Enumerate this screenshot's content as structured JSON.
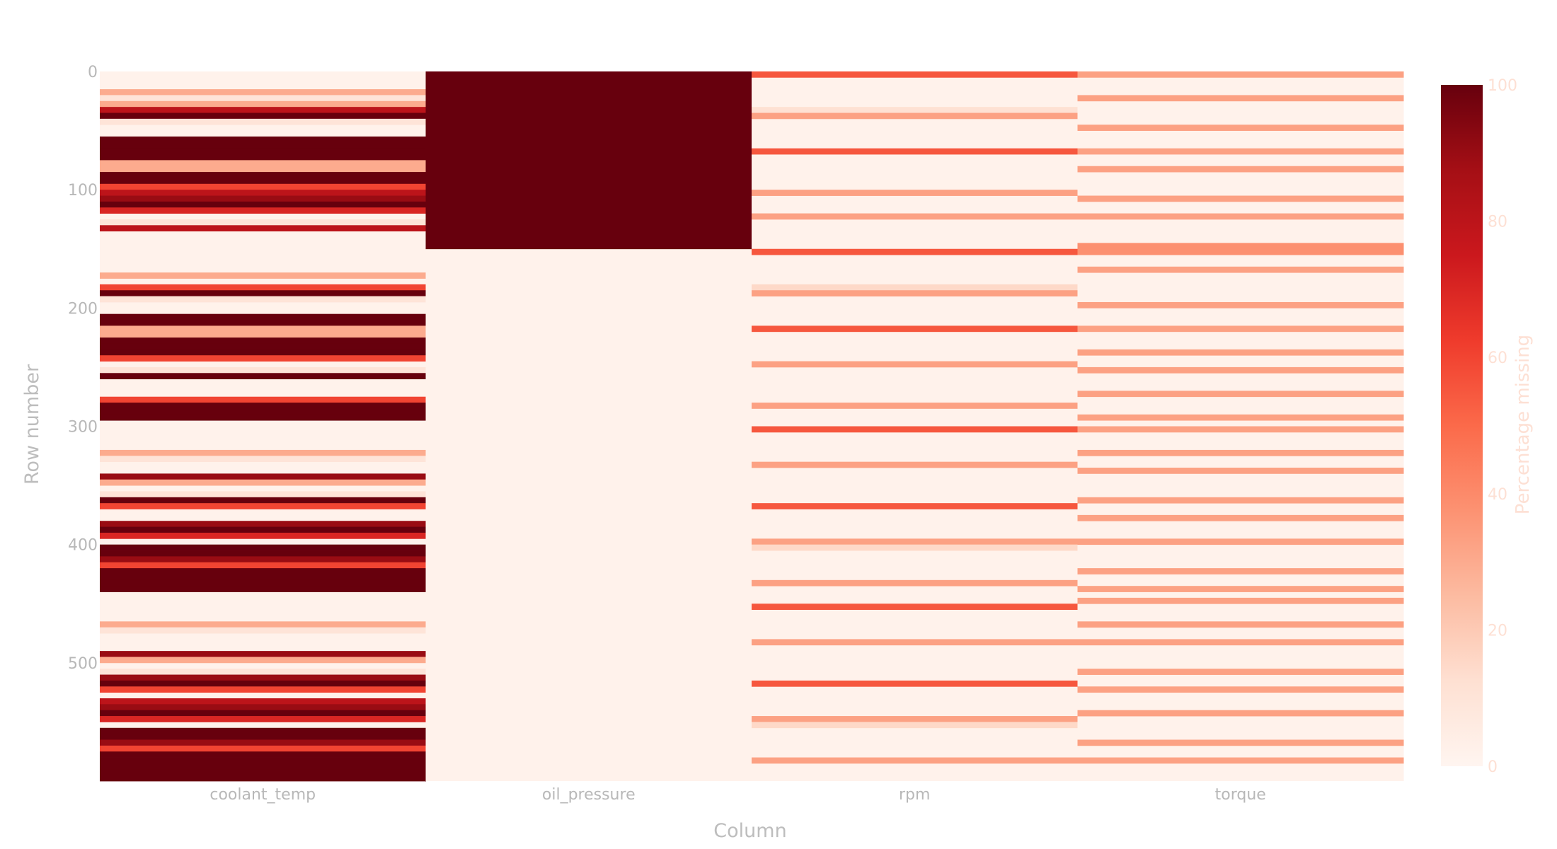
{
  "chart_data": {
    "type": "heatmap",
    "colorscale_name": "Reds",
    "colorscale": [
      "#fff5f0",
      "#fee0d2",
      "#fcbba1",
      "#fc9272",
      "#fb6a4a",
      "#ef3b2c",
      "#cb181d",
      "#a50f15",
      "#67000d"
    ],
    "columns": [
      "coolant_temp",
      "oil_pressure",
      "rpm",
      "torque"
    ],
    "xlabel": "Column",
    "ylabel": "Row number",
    "colorbar_title": "Percentage missing",
    "colorbar_range": [
      0,
      100
    ],
    "colorbar_ticks": [
      "0",
      "20",
      "40",
      "60",
      "80",
      "100"
    ],
    "y_ticks": [
      "0",
      "100",
      "200",
      "300",
      "400",
      "500"
    ],
    "row_count": 600,
    "row_bin": 5,
    "background_value": 2,
    "segments": {
      "coolant_temp": [
        [
          15,
          20,
          30
        ],
        [
          20,
          25,
          10
        ],
        [
          25,
          30,
          30
        ],
        [
          30,
          35,
          80
        ],
        [
          35,
          40,
          100
        ],
        [
          40,
          45,
          10
        ],
        [
          55,
          65,
          100
        ],
        [
          65,
          75,
          100
        ],
        [
          75,
          85,
          30
        ],
        [
          85,
          95,
          100
        ],
        [
          95,
          100,
          60
        ],
        [
          100,
          105,
          80
        ],
        [
          105,
          110,
          90
        ],
        [
          110,
          115,
          100
        ],
        [
          115,
          120,
          70
        ],
        [
          125,
          130,
          10
        ],
        [
          130,
          135,
          80
        ],
        [
          170,
          175,
          30
        ],
        [
          180,
          185,
          60
        ],
        [
          185,
          190,
          100
        ],
        [
          190,
          195,
          10
        ],
        [
          205,
          215,
          100
        ],
        [
          215,
          220,
          30
        ],
        [
          220,
          225,
          30
        ],
        [
          225,
          230,
          100
        ],
        [
          230,
          235,
          100
        ],
        [
          235,
          240,
          100
        ],
        [
          240,
          245,
          60
        ],
        [
          250,
          255,
          10
        ],
        [
          255,
          260,
          100
        ],
        [
          275,
          280,
          60
        ],
        [
          280,
          290,
          100
        ],
        [
          290,
          295,
          100
        ],
        [
          320,
          325,
          30
        ],
        [
          325,
          330,
          10
        ],
        [
          340,
          345,
          90
        ],
        [
          345,
          350,
          30
        ],
        [
          355,
          360,
          10
        ],
        [
          360,
          365,
          100
        ],
        [
          365,
          370,
          60
        ],
        [
          380,
          385,
          90
        ],
        [
          385,
          390,
          100
        ],
        [
          390,
          395,
          70
        ],
        [
          400,
          405,
          100
        ],
        [
          405,
          410,
          100
        ],
        [
          410,
          415,
          90
        ],
        [
          415,
          420,
          60
        ],
        [
          420,
          430,
          100
        ],
        [
          430,
          435,
          100
        ],
        [
          435,
          440,
          100
        ],
        [
          465,
          470,
          30
        ],
        [
          470,
          475,
          10
        ],
        [
          490,
          495,
          90
        ],
        [
          495,
          500,
          30
        ],
        [
          505,
          510,
          10
        ],
        [
          510,
          515,
          90
        ],
        [
          515,
          520,
          100
        ],
        [
          520,
          525,
          60
        ],
        [
          530,
          535,
          80
        ],
        [
          535,
          540,
          90
        ],
        [
          540,
          545,
          100
        ],
        [
          545,
          550,
          70
        ],
        [
          555,
          560,
          100
        ],
        [
          560,
          565,
          100
        ],
        [
          565,
          570,
          90
        ],
        [
          570,
          575,
          60
        ],
        [
          575,
          580,
          100
        ],
        [
          580,
          585,
          100
        ],
        [
          585,
          590,
          100
        ],
        [
          590,
          595,
          100
        ],
        [
          595,
          600,
          100
        ]
      ],
      "oil_pressure": [
        [
          0,
          150,
          100
        ]
      ],
      "rpm": [
        [
          0,
          5,
          55
        ],
        [
          30,
          35,
          12
        ],
        [
          35,
          40,
          33
        ],
        [
          65,
          70,
          55
        ],
        [
          100,
          105,
          33
        ],
        [
          120,
          125,
          33
        ],
        [
          150,
          155,
          55
        ],
        [
          180,
          185,
          15
        ],
        [
          185,
          190,
          33
        ],
        [
          215,
          220,
          55
        ],
        [
          245,
          250,
          33
        ],
        [
          280,
          285,
          33
        ],
        [
          300,
          305,
          55
        ],
        [
          330,
          335,
          33
        ],
        [
          365,
          370,
          55
        ],
        [
          395,
          400,
          33
        ],
        [
          400,
          405,
          15
        ],
        [
          430,
          435,
          33
        ],
        [
          450,
          455,
          55
        ],
        [
          480,
          485,
          33
        ],
        [
          515,
          520,
          55
        ],
        [
          545,
          550,
          33
        ],
        [
          550,
          555,
          15
        ],
        [
          580,
          585,
          33
        ]
      ],
      "torque": [
        [
          0,
          5,
          33
        ],
        [
          20,
          25,
          33
        ],
        [
          45,
          50,
          33
        ],
        [
          65,
          70,
          33
        ],
        [
          80,
          85,
          33
        ],
        [
          105,
          110,
          33
        ],
        [
          120,
          125,
          33
        ],
        [
          145,
          155,
          38
        ],
        [
          165,
          170,
          33
        ],
        [
          195,
          200,
          33
        ],
        [
          215,
          220,
          33
        ],
        [
          235,
          240,
          33
        ],
        [
          250,
          255,
          33
        ],
        [
          270,
          275,
          33
        ],
        [
          290,
          295,
          33
        ],
        [
          300,
          305,
          33
        ],
        [
          320,
          325,
          33
        ],
        [
          335,
          340,
          33
        ],
        [
          360,
          365,
          33
        ],
        [
          375,
          380,
          33
        ],
        [
          395,
          400,
          33
        ],
        [
          420,
          425,
          33
        ],
        [
          435,
          440,
          33
        ],
        [
          445,
          450,
          33
        ],
        [
          465,
          470,
          33
        ],
        [
          480,
          485,
          33
        ],
        [
          505,
          510,
          33
        ],
        [
          520,
          525,
          33
        ],
        [
          540,
          545,
          33
        ],
        [
          565,
          570,
          33
        ],
        [
          580,
          585,
          33
        ]
      ]
    }
  }
}
